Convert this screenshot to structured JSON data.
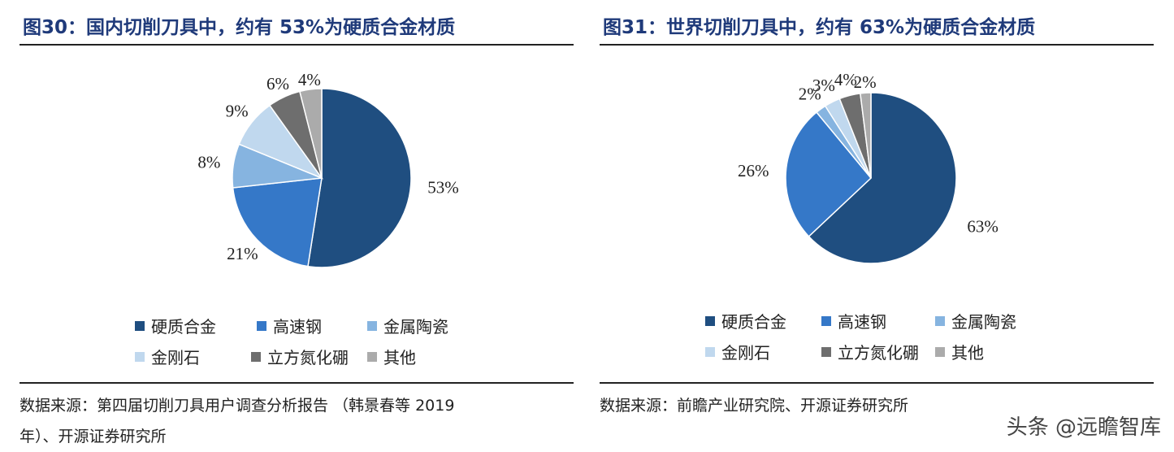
{
  "colors": [
    "#1f4e80",
    "#3578c8",
    "#86b4e0",
    "#c0d8ee",
    "#6e6e6e",
    "#ababab"
  ],
  "legend_labels": [
    "硬质合金",
    "高速钢",
    "金属陶瓷",
    "金刚石",
    "立方氮化硼",
    "其他"
  ],
  "left": {
    "title": "图30：国内切削刀具中，约有 53%为硬质合金材质",
    "source_line1": "数据来源：第四届切削刀具用户调查分析报告  （韩景春等 2019",
    "source_line2": "年）、开源证券研究所"
  },
  "right": {
    "title": "图31：世界切削刀具中，约有 63%为硬质合金材质",
    "source_line1": "数据来源：前瞻产业研究院、开源证券研究所"
  },
  "watermark": "头条 @远瞻智库",
  "chart_data": [
    {
      "type": "pie",
      "title": "图30：国内切削刀具中，约有 53%为硬质合金材质",
      "categories": [
        "硬质合金",
        "高速钢",
        "金属陶瓷",
        "金刚石",
        "立方氮化硼",
        "其他"
      ],
      "values": [
        53,
        21,
        8,
        9,
        6,
        4
      ],
      "labels": [
        "53%",
        "21%",
        "8%",
        "9%",
        "6%",
        "4%"
      ],
      "legend": "bottom"
    },
    {
      "type": "pie",
      "title": "图31：世界切削刀具中，约有 63%为硬质合金材质",
      "categories": [
        "硬质合金",
        "高速钢",
        "金属陶瓷",
        "金刚石",
        "立方氮化硼",
        "其他"
      ],
      "values": [
        63,
        26,
        2,
        3,
        4,
        2
      ],
      "labels": [
        "63%",
        "26%",
        "2%",
        "3%",
        "4%",
        "2%"
      ],
      "legend": "bottom"
    }
  ]
}
